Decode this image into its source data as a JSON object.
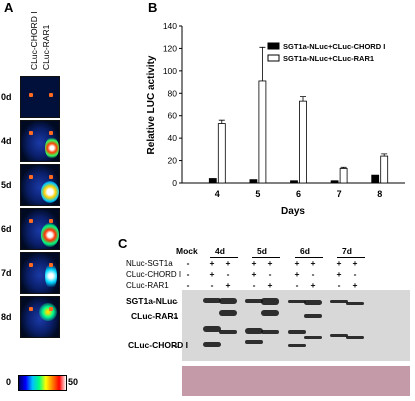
{
  "panel_a": {
    "letter": "A",
    "col1": "CLuc-CHORD I",
    "col2": "CLuc-RAR1",
    "days": [
      "0d",
      "4d",
      "5d",
      "6d",
      "7d",
      "8d"
    ],
    "scale_min": "0",
    "scale_max": "50"
  },
  "panel_b": {
    "letter": "B"
  },
  "chart_data": {
    "type": "bar",
    "categories": [
      "4",
      "5",
      "6",
      "7",
      "8"
    ],
    "xlabel": "Days",
    "ylabel": "Relative LUC activity",
    "ylim": [
      0,
      140
    ],
    "yticks": [
      0,
      20,
      40,
      60,
      80,
      100,
      120,
      140
    ],
    "legend_position": "top-right",
    "series": [
      {
        "name": "SGT1a-NLuc+CLuc-CHORD I",
        "color": "#000000",
        "values": [
          4,
          3,
          2,
          2,
          7
        ],
        "errors": [
          0,
          0,
          0,
          0,
          0
        ]
      },
      {
        "name": "SGT1a-NLuc+CLuc-RAR1",
        "color": "#ffffff",
        "values": [
          53,
          91,
          73,
          13,
          24
        ],
        "errors": [
          3,
          30,
          4,
          1,
          2
        ]
      }
    ]
  },
  "panel_c": {
    "letter": "C",
    "mock": "Mock",
    "days": [
      "4d",
      "5d",
      "6d",
      "7d"
    ],
    "rows": [
      {
        "label": "NLuc-SGT1a",
        "signs": [
          "-",
          "+",
          "+",
          "+",
          "+",
          "+",
          "+",
          "+",
          "+"
        ]
      },
      {
        "label": "CLuc-CHORD I",
        "signs": [
          "-",
          "+",
          "-",
          "+",
          "-",
          "+",
          "-",
          "+",
          "-"
        ]
      },
      {
        "label": "CLuc-RAR1",
        "signs": [
          "-",
          "-",
          "+",
          "-",
          "+",
          "-",
          "+",
          "-",
          "+"
        ]
      }
    ],
    "band_labels": [
      "SGT1a-NLuc",
      "CLuc-RAR1",
      "CLuc-CHORD I"
    ]
  }
}
